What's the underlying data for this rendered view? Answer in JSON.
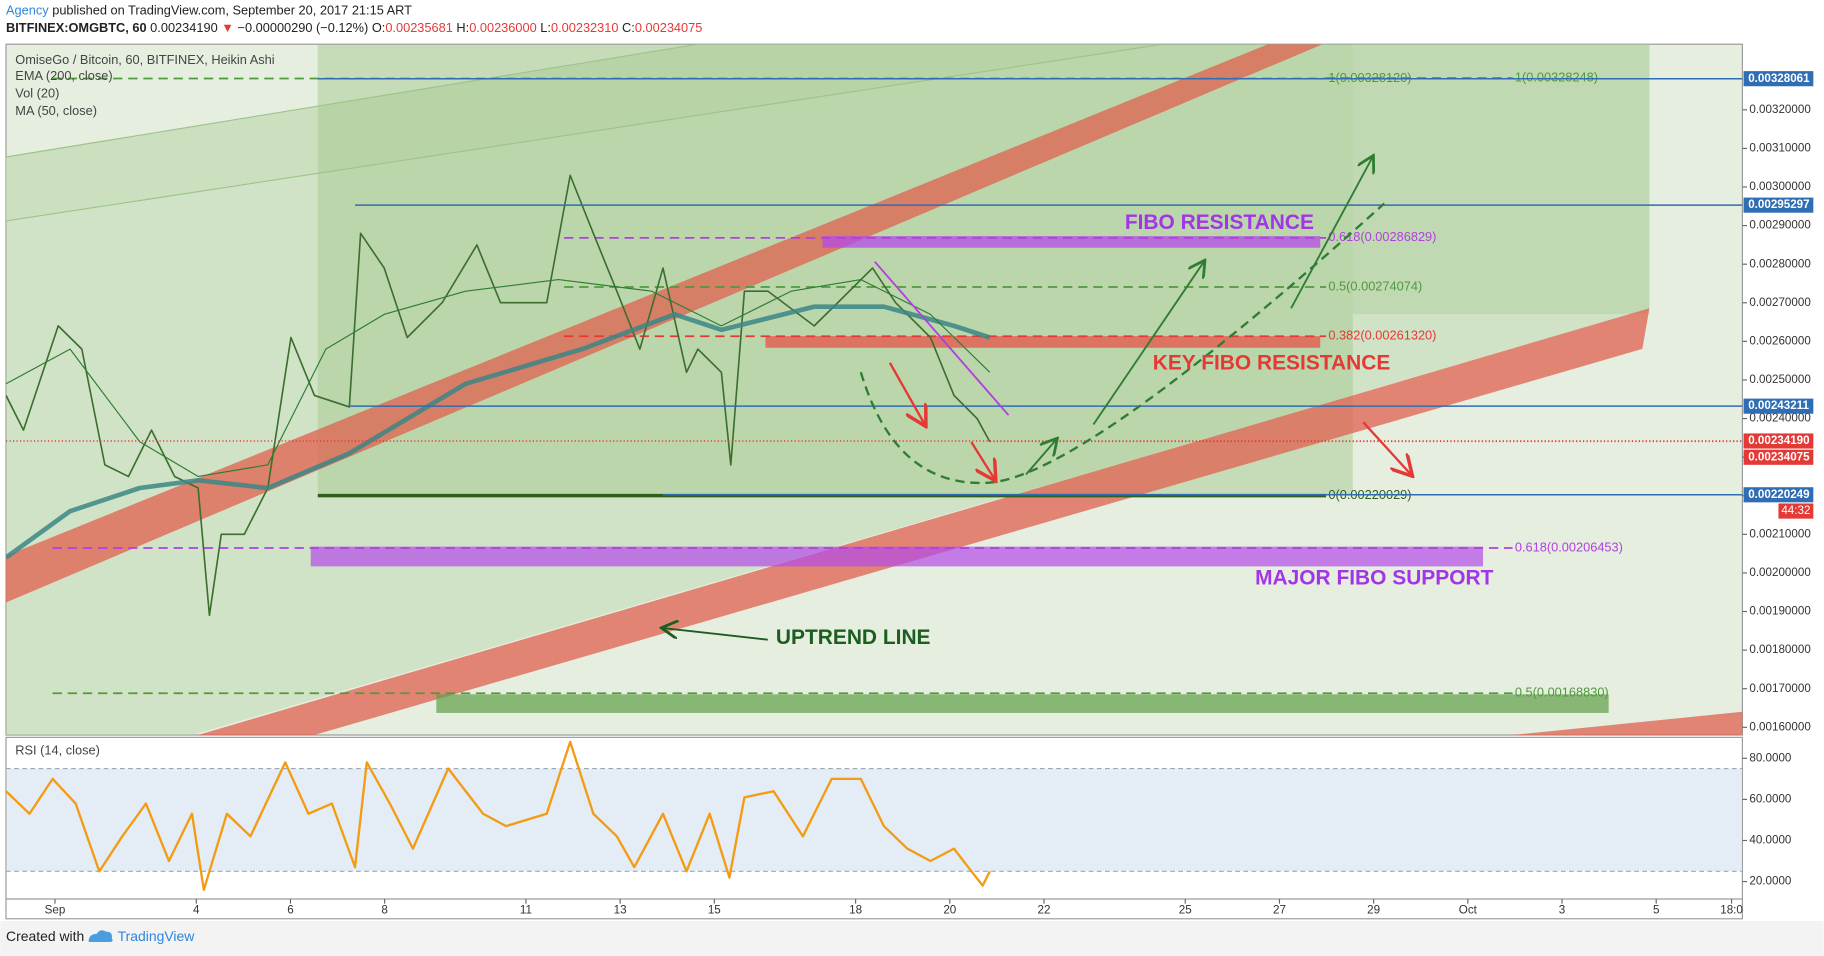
{
  "header": {
    "author": "Agency",
    "published": "published on TradingView.com, September 20, 2017 21:15 ART",
    "symbol": "BITFINEX:OMGBTC, 60",
    "last": "0.00234190",
    "arrow": "▼",
    "change": "−0.00000290 (−0.12%)",
    "ohlc": [
      {
        "label": "O:",
        "value": "0.00235681"
      },
      {
        "label": "H:",
        "value": "0.00236000"
      },
      {
        "label": "L:",
        "value": "0.00232310"
      },
      {
        "label": "C:",
        "value": "0.00234075"
      }
    ]
  },
  "chart_data": [
    {
      "type": "line",
      "volume_label": "Vol (20)",
      "xlim": [
        -0.04,
        36.83
      ],
      "ylim": [
        0.00158,
        0.00337
      ],
      "yticks": [
        {
          "value": 0.0016,
          "label": "0.00160000"
        },
        {
          "value": 0.0017,
          "label": "0.00170000"
        },
        {
          "value": 0.0018,
          "label": "0.00180000"
        },
        {
          "value": 0.0019,
          "label": "0.00190000"
        },
        {
          "value": 0.002,
          "label": "0.00200000"
        },
        {
          "value": 0.0021,
          "label": "0.00210000"
        },
        {
          "value": 0.0022,
          "label": "0.00220000"
        },
        {
          "value": 0.0023,
          "label": "0.00230000"
        },
        {
          "value": 0.0024,
          "label": "0.00240000"
        },
        {
          "value": 0.0025,
          "label": "0.00250000"
        },
        {
          "value": 0.0026,
          "label": "0.00260000"
        },
        {
          "value": 0.0027,
          "label": "0.00270000"
        },
        {
          "value": 0.0028,
          "label": "0.00280000"
        },
        {
          "value": 0.0029,
          "label": "0.00290000"
        },
        {
          "value": 0.003,
          "label": "0.00300000"
        },
        {
          "value": 0.0031,
          "label": "0.00310000"
        },
        {
          "value": 0.0032,
          "label": "0.00320000"
        }
      ],
      "series": [
        {
          "name": "OmiseGo / Bitcoin, 60, BITFINEX, Heikin Ashi",
          "color": "#3c6e2f",
          "x": [
            -0.04,
            0.33,
            1.07,
            1.57,
            2.06,
            2.56,
            3.05,
            3.54,
            4.04,
            4.28,
            4.53,
            5.02,
            5.52,
            6.01,
            6.51,
            7.25,
            7.49,
            7.99,
            8.48,
            9.22,
            9.96,
            10.46,
            11.44,
            11.94,
            12.43,
            12.93,
            13.42,
            13.91,
            14.41,
            14.65,
            15.15,
            15.35,
            15.64,
            16.14,
            17.12,
            17.62,
            18.36,
            18.85,
            19.59,
            20.09,
            20.58,
            20.85
          ],
          "values": [
            0.00246,
            0.00237,
            0.00264,
            0.00258,
            0.00228,
            0.00225,
            0.00237,
            0.00225,
            0.00222,
            0.00189,
            0.0021,
            0.0021,
            0.00222,
            0.00261,
            0.00246,
            0.00243,
            0.00288,
            0.00279,
            0.00261,
            0.0027,
            0.00285,
            0.0027,
            0.0027,
            0.00303,
            0.00288,
            0.00273,
            0.00258,
            0.00279,
            0.00252,
            0.00258,
            0.00252,
            0.00228,
            0.00273,
            0.00273,
            0.00264,
            0.0027,
            0.00279,
            0.0027,
            0.00261,
            0.00246,
            0.0024,
            0.00234
          ]
        },
        {
          "name": "EMA (200, close)",
          "color": "#3b8686",
          "x": [
            -0.04,
            1.32,
            2.8,
            4.04,
            5.52,
            7.25,
            9.72,
            12.19,
            14.16,
            15.15,
            17.12,
            18.6,
            20.09,
            20.85
          ],
          "values": [
            0.00204,
            0.00216,
            0.00222,
            0.00224,
            0.00222,
            0.00231,
            0.00249,
            0.00258,
            0.00267,
            0.00263,
            0.00269,
            0.00269,
            0.00264,
            0.00261
          ]
        },
        {
          "name": "MA (50, close)",
          "color": "#2e7d32",
          "x": [
            -0.04,
            1.32,
            2.8,
            4.04,
            5.52,
            6.75,
            7.99,
            9.72,
            11.69,
            13.67,
            15.15,
            16.63,
            18.11,
            19.59,
            20.85
          ],
          "values": [
            0.00249,
            0.00258,
            0.00234,
            0.00225,
            0.00228,
            0.00258,
            0.00267,
            0.00273,
            0.00276,
            0.00273,
            0.00264,
            0.00273,
            0.00276,
            0.00267,
            0.00252
          ]
        }
      ],
      "levels": [
        {
          "label": "1(0.00328120)",
          "value": 0.0032812,
          "color": "#4f9a3c",
          "style": "dashed",
          "from": 0.95,
          "to": 27.99
        },
        {
          "label": "1(0.00328248)",
          "value": 0.00328248,
          "color": "#4f9a3c",
          "style": "dashed",
          "from": 27.99,
          "to": 31.95
        },
        {
          "label": "0.618(0.00286829)",
          "value": 0.00286829,
          "color": "#b040e0",
          "style": "dashed",
          "from": 11.81,
          "to": 27.99
        },
        {
          "label": "0.5(0.00274074)",
          "value": 0.00274074,
          "color": "#4f9a3c",
          "style": "dashed",
          "from": 11.81,
          "to": 27.99
        },
        {
          "label": "0.382(0.00261320)",
          "value": 0.0026132,
          "color": "#e53935",
          "style": "dashed",
          "from": 11.81,
          "to": 27.99
        },
        {
          "label": "0(0.00220029)",
          "value": 0.00220029,
          "color": "#2f5e1e",
          "style": "solid",
          "from": 6.58,
          "to": 27.99
        },
        {
          "label": "0.618(0.00206453)",
          "value": 0.00206453,
          "color": "#b040e0",
          "style": "dashed",
          "from": 0.95,
          "to": 31.95
        },
        {
          "label": "0.5(0.00168830)",
          "value": 0.0016883,
          "color": "#4f9a3c",
          "style": "dashed",
          "from": 0.95,
          "to": 31.95
        }
      ],
      "price_lines": [
        {
          "value": 0.00328061,
          "label": "0.00328061",
          "color": "#2f6db5",
          "style": "solid",
          "from": 6.58
        },
        {
          "value": 0.00295297,
          "label": "0.00295297",
          "color": "#2f6db5",
          "style": "solid",
          "from": 7.37
        },
        {
          "value": 0.00243211,
          "label": "0.00243211",
          "color": "#2f6db5",
          "style": "solid",
          "from": 7.25
        },
        {
          "value": 0.0023419,
          "label": "0.00234190",
          "color": "#e53935",
          "style": "dotted",
          "from": -0.04
        },
        {
          "value": 0.00234075,
          "label": "0.00234075",
          "color": "#e53935",
          "style": "dotted",
          "from": 20.85
        },
        {
          "value": 0.00220249,
          "label": "0.00220249",
          "color": "#2f6db5",
          "style": "solid",
          "from": 13.91
        }
      ],
      "countdown": "44:32",
      "annotations": [
        "FIBO RESISTANCE",
        "KEY FIBO RESISTANCE",
        "MAJOR FIBO SUPPORT",
        "UPTREND LINE"
      ]
    },
    {
      "type": "line",
      "title": "RSI (14, close)",
      "xlim": [
        -0.04,
        36.83
      ],
      "ylim": [
        11.5,
        90.2
      ],
      "bands": [
        25,
        75
      ],
      "yticks": [
        {
          "value": 20,
          "label": "20.0000"
        },
        {
          "value": 40,
          "label": "40.0000"
        },
        {
          "value": 60,
          "label": "60.0000"
        },
        {
          "value": 80,
          "label": "80.0000"
        }
      ],
      "xticks": [
        {
          "value": 1,
          "label": "Sep"
        },
        4,
        6,
        8,
        11,
        13,
        15,
        18,
        20,
        22,
        25,
        27,
        29,
        {
          "value": 31,
          "label": "Oct"
        },
        {
          "value": 33,
          "label": "3"
        },
        {
          "value": 35,
          "label": "5"
        },
        {
          "value": 36.6,
          "label": "18:0"
        }
      ],
      "series": [
        {
          "name": "RSI",
          "color": "#f39c12",
          "x": [
            -0.04,
            0.46,
            0.95,
            1.44,
            1.94,
            2.43,
            2.93,
            3.42,
            3.91,
            4.16,
            4.65,
            5.15,
            5.89,
            6.38,
            6.88,
            7.37,
            7.62,
            8.11,
            8.6,
            9.35,
            10.09,
            10.58,
            11.44,
            11.94,
            12.43,
            12.93,
            13.3,
            13.91,
            14.41,
            14.9,
            15.32,
            15.64,
            16.26,
            16.88,
            17.49,
            18.11,
            18.6,
            19.1,
            19.59,
            20.09,
            20.46,
            20.7,
            20.85
          ],
          "values": [
            64,
            53,
            70,
            58,
            25,
            42,
            58,
            30,
            53,
            16,
            53,
            42,
            78,
            53,
            58,
            27,
            78,
            58,
            36,
            75,
            53,
            47,
            53,
            88,
            53,
            42,
            27,
            53,
            25,
            53,
            22,
            61,
            64,
            42,
            70,
            70,
            47,
            36,
            30,
            36,
            25,
            18,
            25
          ]
        }
      ]
    }
  ],
  "footer": {
    "text": "Created with",
    "brand": "TradingView"
  }
}
